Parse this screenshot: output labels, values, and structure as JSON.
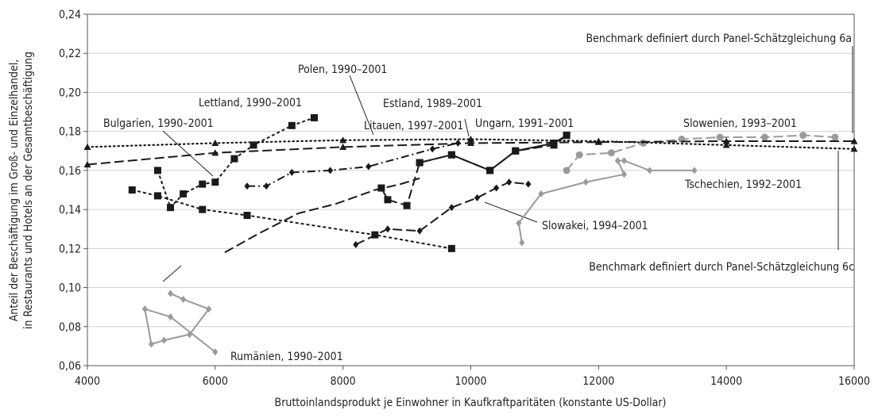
{
  "chart_data": {
    "type": "line",
    "xlabel": "Bruttoinlandsprodukt je Einwohner in Kaufkraftparitäten (konstante US-Dollar)",
    "ylabel": [
      "Anteil der Beschäftigung im Groß- und Einzelhandel,",
      "in Restaurants und Hotels an der Gesamtbeschäftigung"
    ],
    "xlim": [
      4000,
      16000
    ],
    "xticks": [
      4000,
      6000,
      8000,
      10000,
      12000,
      14000,
      16000
    ],
    "ylim": [
      0.06,
      0.24
    ],
    "yticks": [
      {
        "value": 0.06,
        "label": "0,06"
      },
      {
        "value": 0.08,
        "label": "0,08"
      },
      {
        "value": 0.1,
        "label": "0,10"
      },
      {
        "value": 0.12,
        "label": "0,12"
      },
      {
        "value": 0.14,
        "label": "0,14"
      },
      {
        "value": 0.16,
        "label": "0,16"
      },
      {
        "value": 0.18,
        "label": "0,18"
      },
      {
        "value": 0.2,
        "label": "0,20"
      },
      {
        "value": 0.22,
        "label": "0,22"
      },
      {
        "value": 0.24,
        "label": "0,24"
      }
    ],
    "grid": true,
    "series": [
      {
        "name": "Rumänien, 1990–2001",
        "color": "#9a9a9a",
        "dash": "solid",
        "marker": "diamond",
        "x": [
          5300,
          5500,
          5900,
          5600,
          5200,
          5000,
          4900,
          5300,
          6000
        ],
        "values": [
          0.097,
          0.094,
          0.089,
          0.076,
          0.073,
          0.071,
          0.089,
          0.085,
          0.067
        ]
      },
      {
        "name": "Lettland, 1990–2001",
        "color": "#1a1a1a",
        "dash": "short",
        "marker": "square",
        "x": [
          5100,
          5300,
          5500,
          5800,
          6000,
          6300,
          6600,
          7200,
          7550
        ],
        "values": [
          0.16,
          0.141,
          0.148,
          0.153,
          0.154,
          0.166,
          0.173,
          0.183,
          0.187
        ]
      },
      {
        "name": "Bulgarien, 1990–2001",
        "color": "#1a1a1a",
        "dash": "short",
        "marker": "square",
        "x": [
          4700,
          5100,
          5800,
          6500,
          8500,
          9700
        ],
        "values": [
          0.15,
          0.147,
          0.14,
          0.137,
          0.127,
          0.12
        ]
      },
      {
        "name": "Polen, 1990–2001",
        "color": "#1a1a1a",
        "dash": "long",
        "marker": "none",
        "x": [
          6150,
          6700,
          7300,
          7900,
          8500,
          8900,
          9200
        ],
        "values": [
          0.118,
          0.128,
          0.138,
          0.143,
          0.15,
          0.153,
          0.156
        ]
      },
      {
        "name": "Estland, 1989–2001",
        "color": "#1a1a1a",
        "dash": "long",
        "marker": "square",
        "x": [
          8600,
          8700,
          9000,
          9200,
          9700,
          10300,
          10700,
          11300,
          11500
        ],
        "values": [
          0.151,
          0.145,
          0.142,
          0.164,
          0.168,
          0.16,
          0.17,
          0.173,
          0.178
        ]
      },
      {
        "name": "Litauen, 1997–2001",
        "color": "#1a1a1a",
        "dash": "dashdot",
        "marker": "diamond",
        "x": [
          6500,
          6800,
          7200,
          7800,
          8400,
          9400,
          9800
        ],
        "values": [
          0.152,
          0.152,
          0.159,
          0.16,
          0.162,
          0.171,
          0.174
        ]
      },
      {
        "name": "Ungarn, 1991–2001",
        "color": "#1a1a1a",
        "dash": "solid",
        "marker": "square",
        "x": [
          9200,
          9700,
          10300,
          10700,
          11300,
          11500
        ],
        "values": [
          0.164,
          0.168,
          0.16,
          0.17,
          0.174,
          0.178
        ]
      },
      {
        "name": "Slowakei, 1994–2001",
        "color": "#1a1a1a",
        "dash": "long",
        "marker": "diamond",
        "x": [
          8200,
          8700,
          9200,
          9700,
          10100,
          10400,
          10600,
          10900
        ],
        "values": [
          0.122,
          0.13,
          0.129,
          0.141,
          0.146,
          0.151,
          0.154,
          0.153
        ]
      },
      {
        "name": "Slowenien, 1993–2001",
        "color": "#9a9a9a",
        "dash": "long",
        "marker": "circle",
        "x": [
          11500,
          11700,
          12200,
          12700,
          13300,
          13900,
          14600,
          15200,
          15700
        ],
        "values": [
          0.16,
          0.168,
          0.169,
          0.174,
          0.176,
          0.177,
          0.177,
          0.178,
          0.177
        ]
      },
      {
        "name": "Tschechien, 1992–2001",
        "color": "#9a9a9a",
        "dash": "solid",
        "marker": "diamond",
        "x": [
          10800,
          10750,
          11100,
          11800,
          12400,
          12300,
          12400,
          12800,
          13500
        ],
        "values": [
          0.123,
          0.133,
          0.148,
          0.154,
          0.158,
          0.165,
          0.165,
          0.16,
          0.16
        ]
      },
      {
        "name": "Benchmark definiert durch Panel-Schätzgleichung 6a",
        "color": "#1a1a1a",
        "dash": "dot",
        "marker": "triangle",
        "x": [
          4000,
          6000,
          8000,
          10000,
          12000,
          14000,
          16000
        ],
        "values": [
          0.172,
          0.174,
          0.1755,
          0.176,
          0.175,
          0.173,
          0.171
        ]
      },
      {
        "name": "Benchmark definiert durch Panel-Schätzgleichung 6c",
        "color": "#1a1a1a",
        "dash": "long",
        "marker": "triangle",
        "x": [
          4000,
          6000,
          8000,
          10000,
          12000,
          14000,
          16000
        ],
        "values": [
          0.163,
          0.169,
          0.172,
          0.174,
          0.1745,
          0.175,
          0.175
        ]
      }
    ]
  }
}
